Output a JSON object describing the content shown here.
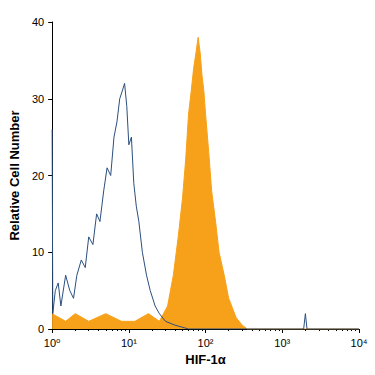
{
  "chart_data": {
    "type": "line",
    "xlabel": "HIF-1α",
    "ylabel": "Relative Cell Number",
    "log": "x",
    "grid": false,
    "xlim": [
      1,
      10000
    ],
    "xticks": [
      {
        "value": 1,
        "label": "10⁰"
      },
      {
        "value": 10,
        "label": "10¹"
      },
      {
        "value": 100,
        "label": "10²"
      },
      {
        "value": 1000,
        "label": "10³"
      },
      {
        "value": 10000,
        "label": "10⁴"
      }
    ],
    "ylim": [
      0,
      40
    ],
    "yticks": [
      0,
      10,
      20,
      30,
      40
    ],
    "series": [
      {
        "type": "line",
        "color": "#2b4f7e",
        "x": [
          1,
          1.02,
          1.1,
          1.2,
          1.3,
          1.5,
          1.7,
          1.9,
          2.1,
          2.4,
          2.7,
          3,
          3.4,
          3.8,
          4.2,
          4.7,
          5.2,
          5.8,
          6.4,
          7,
          7.6,
          8.2,
          8.8,
          9.4,
          10,
          10.8,
          11.6,
          12.5,
          13.5,
          15,
          17,
          19,
          22,
          25,
          30,
          40,
          60,
          100,
          300,
          1000,
          1900,
          2000,
          2100,
          4000,
          10000
        ],
        "values": [
          26,
          2,
          5,
          6,
          3,
          7,
          5,
          4,
          7,
          9,
          8,
          12,
          11,
          15,
          14,
          18,
          21,
          20,
          25,
          27,
          30,
          31,
          32,
          29,
          24,
          25,
          19,
          16,
          14,
          10,
          7,
          5,
          3,
          2,
          1,
          0.5,
          0,
          0,
          0,
          0,
          0,
          2,
          0,
          0,
          0
        ]
      },
      {
        "type": "area",
        "color": "#f7a11a",
        "x": [
          1,
          1.5,
          2,
          3,
          5,
          8,
          12,
          18,
          25,
          32,
          38,
          44,
          50,
          55,
          60,
          65,
          70,
          75,
          80,
          85,
          90,
          95,
          100,
          110,
          120,
          135,
          150,
          175,
          200,
          250,
          300,
          350,
          500,
          10000
        ],
        "values": [
          2,
          1,
          2,
          1,
          2,
          1,
          1,
          2,
          1,
          3,
          7,
          12,
          17,
          22,
          28,
          31,
          34,
          36,
          38,
          36,
          33,
          31,
          28,
          23,
          18,
          14,
          10,
          7,
          4,
          1.5,
          0.5,
          0,
          0,
          0
        ]
      }
    ]
  }
}
